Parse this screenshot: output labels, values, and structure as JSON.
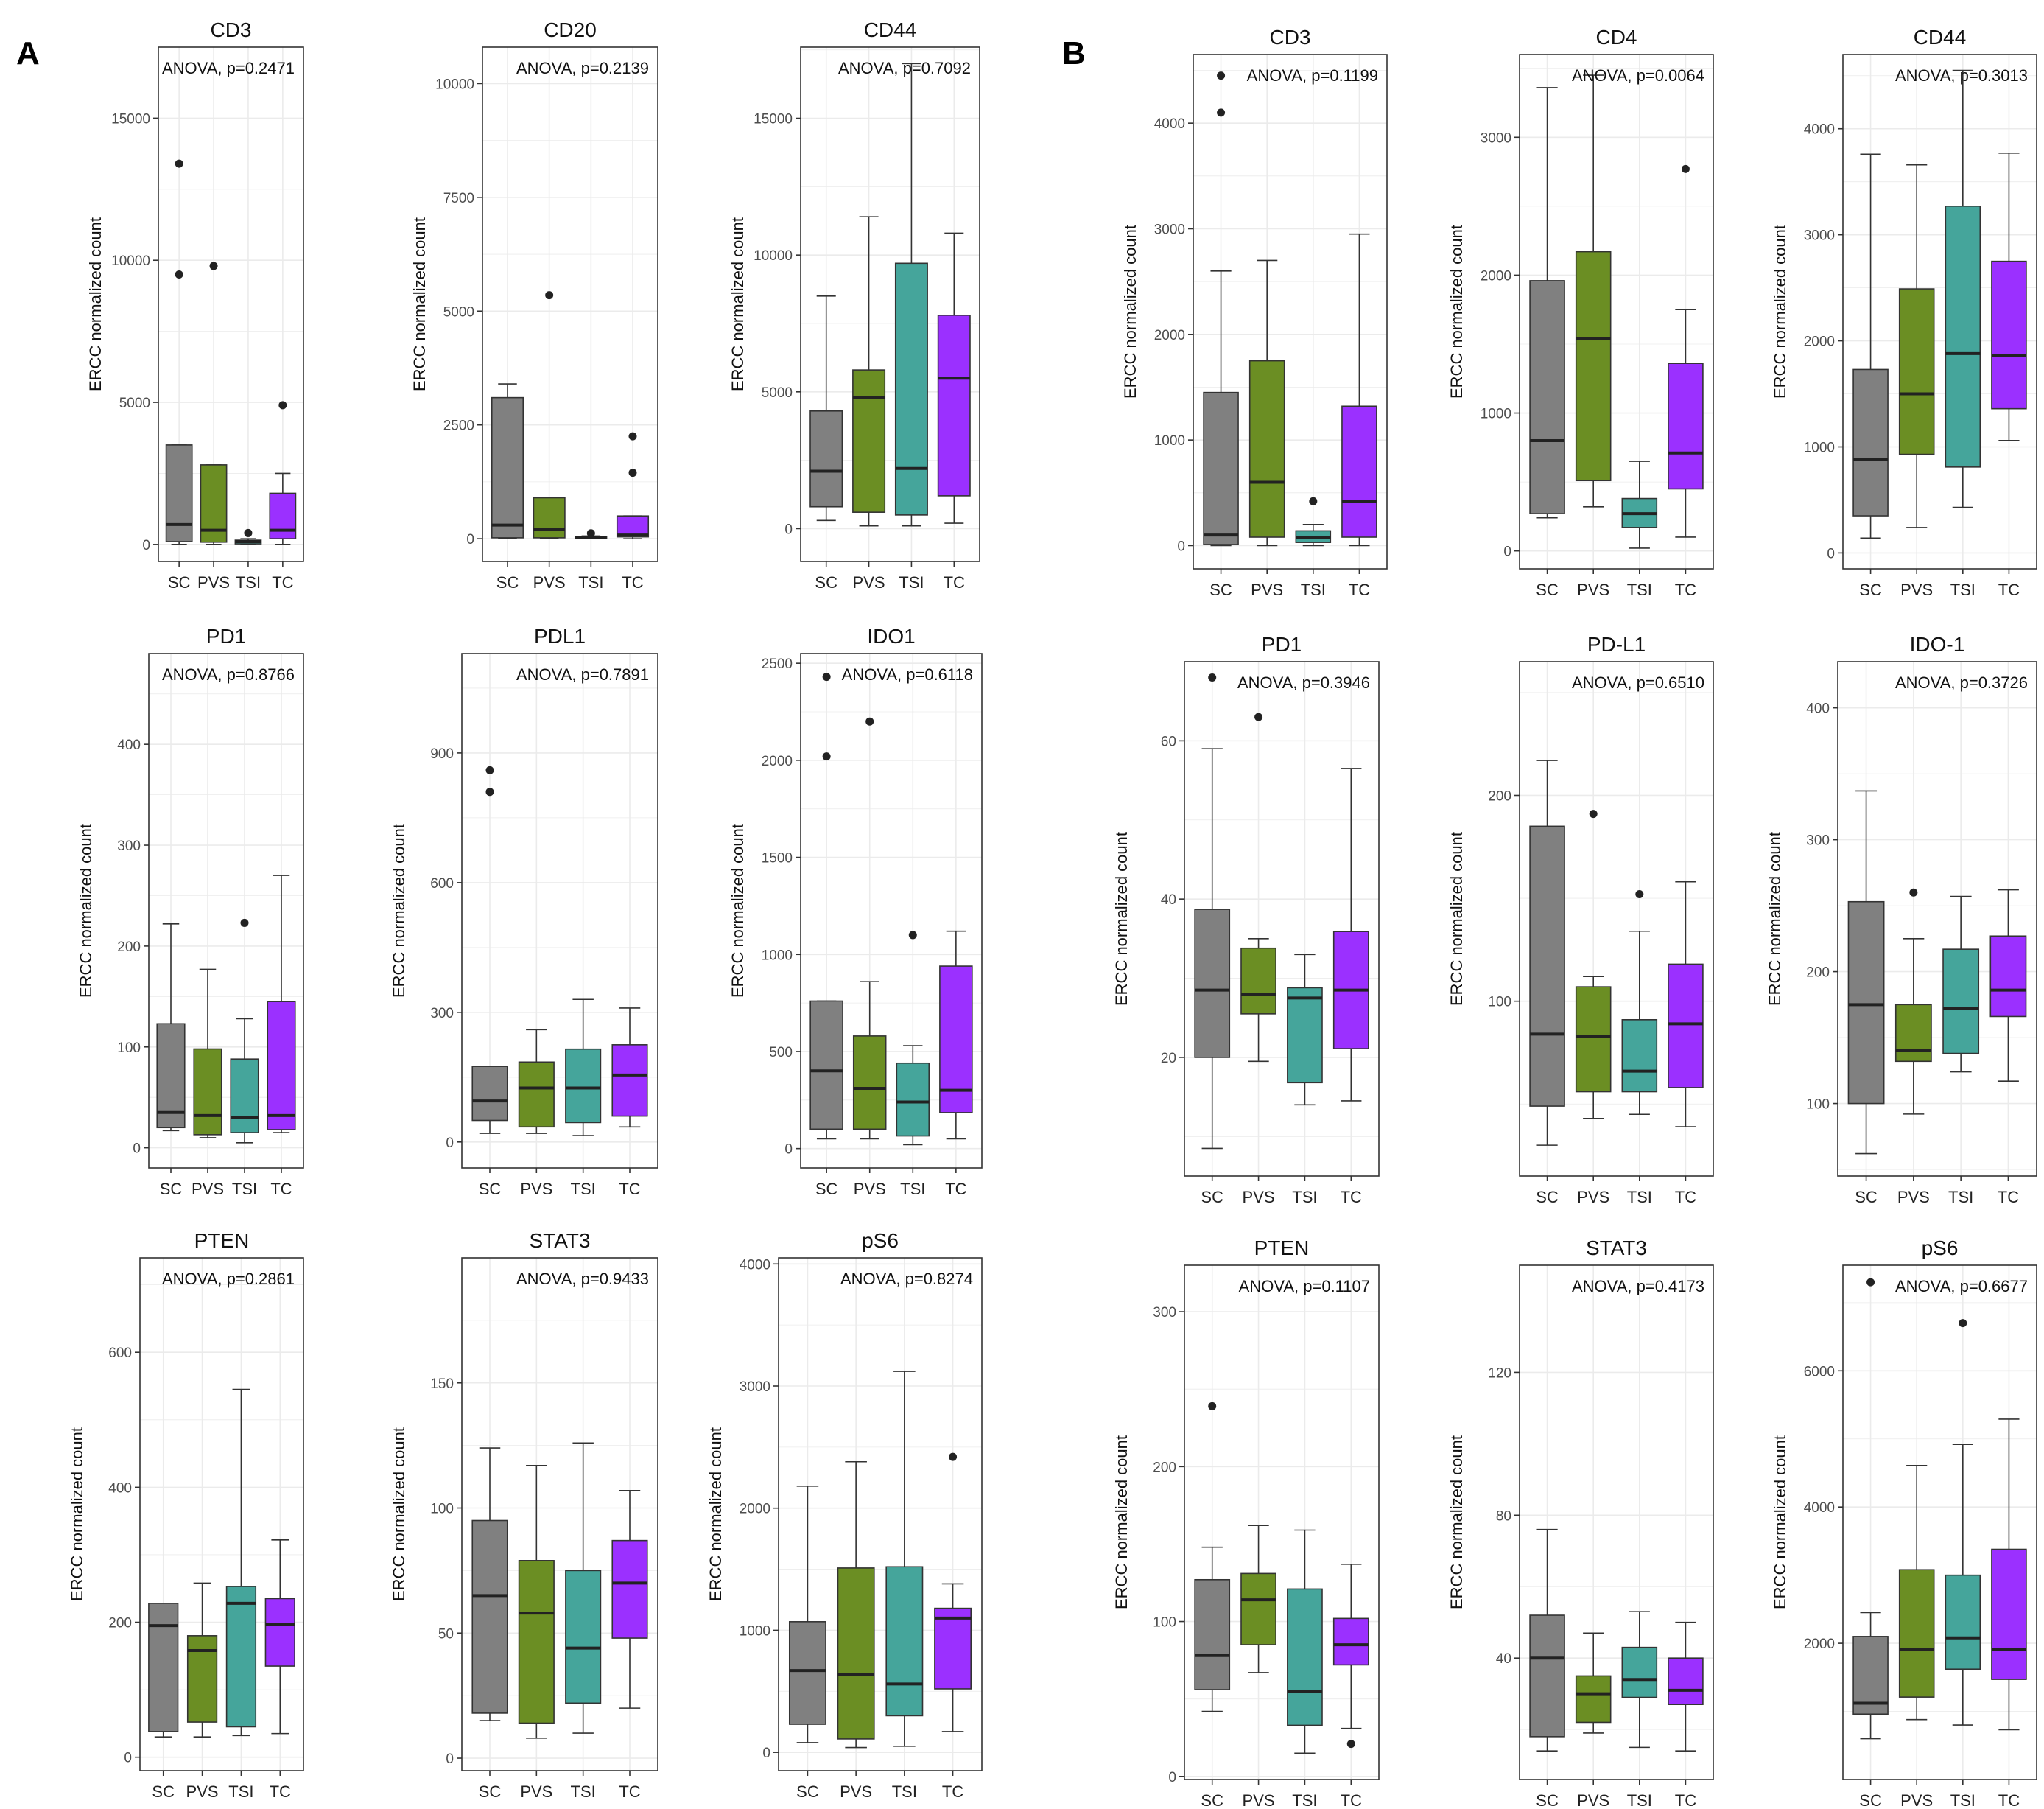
{
  "panel_labels": [
    "A",
    "B"
  ],
  "colors": {
    "SC": "#808080",
    "PVS": "#6b8e23",
    "TSI": "#45a59b",
    "TC": "#9b30ff",
    "grid": "#ebebeb",
    "frame": "#333333"
  },
  "chart_data": [
    {
      "panel": "A",
      "type": "boxplot",
      "title": "CD3",
      "annotation": "ANOVA, p=0.2471",
      "ylabel": "ERCC normalized count",
      "categories": [
        "SC",
        "PVS",
        "TSI",
        "TC"
      ],
      "ylim": [
        -600,
        17500
      ],
      "yticks": [
        0,
        5000,
        10000,
        15000
      ],
      "boxes": [
        {
          "q1": 100,
          "median": 700,
          "q3": 3500,
          "wlo": 0,
          "whi": 3500,
          "outliers": [
            9500,
            13400
          ]
        },
        {
          "q1": 80,
          "median": 500,
          "q3": 2800,
          "wlo": 0,
          "whi": 2800,
          "outliers": [
            9800
          ]
        },
        {
          "q1": 20,
          "median": 100,
          "q3": 150,
          "wlo": 0,
          "whi": 200,
          "outliers": [
            400
          ]
        },
        {
          "q1": 200,
          "median": 500,
          "q3": 1800,
          "wlo": 0,
          "whi": 2500,
          "outliers": [
            4900
          ]
        }
      ]
    },
    {
      "panel": "A",
      "type": "boxplot",
      "title": "CD20",
      "annotation": "ANOVA, p=0.2139",
      "ylabel": "ERCC normalized count",
      "categories": [
        "SC",
        "PVS",
        "TSI",
        "TC"
      ],
      "ylim": [
        -500,
        10800
      ],
      "yticks": [
        0,
        2500,
        5000,
        7500,
        10000
      ],
      "boxes": [
        {
          "q1": 20,
          "median": 300,
          "q3": 3100,
          "wlo": 0,
          "whi": 3400,
          "outliers": []
        },
        {
          "q1": 20,
          "median": 200,
          "q3": 900,
          "wlo": 0,
          "whi": 900,
          "outliers": [
            5350
          ]
        },
        {
          "q1": 5,
          "median": 30,
          "q3": 50,
          "wlo": 0,
          "whi": 60,
          "outliers": [
            120
          ]
        },
        {
          "q1": 40,
          "median": 80,
          "q3": 500,
          "wlo": 0,
          "whi": 500,
          "outliers": [
            1450,
            2250
          ]
        }
      ]
    },
    {
      "panel": "A",
      "type": "boxplot",
      "title": "CD44",
      "annotation": "ANOVA, p=0.7092",
      "ylabel": "ERCC normalized count",
      "categories": [
        "SC",
        "PVS",
        "TSI",
        "TC"
      ],
      "ylim": [
        -1200,
        17600
      ],
      "yticks": [
        0,
        5000,
        10000,
        15000
      ],
      "boxes": [
        {
          "q1": 800,
          "median": 2100,
          "q3": 4300,
          "wlo": 300,
          "whi": 8500,
          "outliers": []
        },
        {
          "q1": 600,
          "median": 4800,
          "q3": 5800,
          "wlo": 100,
          "whi": 11400,
          "outliers": []
        },
        {
          "q1": 500,
          "median": 2200,
          "q3": 9700,
          "wlo": 100,
          "whi": 17000,
          "outliers": []
        },
        {
          "q1": 1200,
          "median": 5500,
          "q3": 7800,
          "wlo": 200,
          "whi": 10800,
          "outliers": []
        }
      ]
    },
    {
      "panel": "B",
      "type": "boxplot",
      "title": "CD3",
      "annotation": "ANOVA, p=0.1199",
      "ylabel": "ERCC normalized count",
      "categories": [
        "SC",
        "PVS",
        "TSI",
        "TC"
      ],
      "ylim": [
        -220,
        4650
      ],
      "yticks": [
        0,
        1000,
        2000,
        3000,
        4000
      ],
      "boxes": [
        {
          "q1": 10,
          "median": 100,
          "q3": 1450,
          "wlo": 0,
          "whi": 2600,
          "outliers": [
            4100,
            4450
          ]
        },
        {
          "q1": 80,
          "median": 600,
          "q3": 1750,
          "wlo": 0,
          "whi": 2700,
          "outliers": []
        },
        {
          "q1": 30,
          "median": 80,
          "q3": 140,
          "wlo": 0,
          "whi": 200,
          "outliers": [
            420
          ]
        },
        {
          "q1": 80,
          "median": 420,
          "q3": 1320,
          "wlo": 0,
          "whi": 2950,
          "outliers": []
        }
      ]
    },
    {
      "panel": "B",
      "type": "boxplot",
      "title": "CD4",
      "annotation": "ANOVA, p=0.0064",
      "ylabel": "ERCC normalized count",
      "categories": [
        "SC",
        "PVS",
        "TSI",
        "TC"
      ],
      "ylim": [
        -130,
        3600
      ],
      "yticks": [
        0,
        1000,
        2000,
        3000
      ],
      "boxes": [
        {
          "q1": 270,
          "median": 800,
          "q3": 1960,
          "wlo": 240,
          "whi": 3360,
          "outliers": []
        },
        {
          "q1": 510,
          "median": 1540,
          "q3": 2170,
          "wlo": 320,
          "whi": 3450,
          "outliers": []
        },
        {
          "q1": 170,
          "median": 270,
          "q3": 380,
          "wlo": 20,
          "whi": 650,
          "outliers": []
        },
        {
          "q1": 450,
          "median": 710,
          "q3": 1360,
          "wlo": 100,
          "whi": 1750,
          "outliers": [
            2770
          ]
        }
      ]
    },
    {
      "panel": "B",
      "type": "boxplot",
      "title": "CD44",
      "annotation": "ANOVA, p=0.3013",
      "ylabel": "ERCC normalized count",
      "categories": [
        "SC",
        "PVS",
        "TSI",
        "TC"
      ],
      "ylim": [
        -150,
        4700
      ],
      "yticks": [
        0,
        1000,
        2000,
        3000,
        4000
      ],
      "boxes": [
        {
          "q1": 350,
          "median": 880,
          "q3": 1730,
          "wlo": 140,
          "whi": 3760,
          "outliers": []
        },
        {
          "q1": 930,
          "median": 1500,
          "q3": 2490,
          "wlo": 240,
          "whi": 3660,
          "outliers": []
        },
        {
          "q1": 810,
          "median": 1880,
          "q3": 3270,
          "wlo": 430,
          "whi": 4550,
          "outliers": []
        },
        {
          "q1": 1360,
          "median": 1860,
          "q3": 2750,
          "wlo": 1060,
          "whi": 3770,
          "outliers": []
        }
      ]
    },
    {
      "panel": "A",
      "type": "boxplot",
      "title": "PD1",
      "annotation": "ANOVA, p=0.8766",
      "ylabel": "ERCC normalized count",
      "categories": [
        "SC",
        "PVS",
        "TSI",
        "TC"
      ],
      "ylim": [
        -20,
        490
      ],
      "yticks": [
        0,
        100,
        200,
        300,
        400
      ],
      "boxes": [
        {
          "q1": 20,
          "median": 35,
          "q3": 123,
          "wlo": 17,
          "whi": 222,
          "outliers": []
        },
        {
          "q1": 13,
          "median": 32,
          "q3": 98,
          "wlo": 10,
          "whi": 177,
          "outliers": []
        },
        {
          "q1": 15,
          "median": 30,
          "q3": 88,
          "wlo": 5,
          "whi": 128,
          "outliers": [
            223
          ]
        },
        {
          "q1": 18,
          "median": 32,
          "q3": 145,
          "wlo": 15,
          "whi": 270,
          "outliers": []
        }
      ]
    },
    {
      "panel": "A",
      "type": "boxplot",
      "title": "PDL1",
      "annotation": "ANOVA, p=0.7891",
      "ylabel": "ERCC normalized count",
      "categories": [
        "SC",
        "PVS",
        "TSI",
        "TC"
      ],
      "ylim": [
        -60,
        1130
      ],
      "yticks": [
        0,
        300,
        600,
        900
      ],
      "boxes": [
        {
          "q1": 50,
          "median": 95,
          "q3": 175,
          "wlo": 20,
          "whi": 175,
          "outliers": [
            810,
            860
          ]
        },
        {
          "q1": 35,
          "median": 125,
          "q3": 185,
          "wlo": 20,
          "whi": 260,
          "outliers": []
        },
        {
          "q1": 45,
          "median": 125,
          "q3": 215,
          "wlo": 15,
          "whi": 330,
          "outliers": []
        },
        {
          "q1": 60,
          "median": 155,
          "q3": 225,
          "wlo": 35,
          "whi": 310,
          "outliers": []
        }
      ]
    },
    {
      "panel": "A",
      "type": "boxplot",
      "title": "IDO1",
      "annotation": "ANOVA, p=0.6118",
      "ylabel": "ERCC normalized count",
      "categories": [
        "SC",
        "PVS",
        "TSI",
        "TC"
      ],
      "ylim": [
        -100,
        2550
      ],
      "yticks": [
        0,
        500,
        1000,
        1500,
        2000,
        2500
      ],
      "boxes": [
        {
          "q1": 100,
          "median": 400,
          "q3": 760,
          "wlo": 50,
          "whi": 760,
          "outliers": [
            2020,
            2430
          ]
        },
        {
          "q1": 100,
          "median": 310,
          "q3": 580,
          "wlo": 50,
          "whi": 860,
          "outliers": [
            2200
          ]
        },
        {
          "q1": 65,
          "median": 240,
          "q3": 440,
          "wlo": 20,
          "whi": 530,
          "outliers": [
            1100
          ]
        },
        {
          "q1": 185,
          "median": 300,
          "q3": 940,
          "wlo": 50,
          "whi": 1120,
          "outliers": []
        }
      ]
    },
    {
      "panel": "B",
      "type": "boxplot",
      "title": "PD1",
      "annotation": "ANOVA, p=0.3946",
      "ylabel": "ERCC normalized count",
      "categories": [
        "SC",
        "PVS",
        "TSI",
        "TC"
      ],
      "ylim": [
        5,
        70
      ],
      "yticks": [
        20,
        40,
        60
      ],
      "boxes": [
        {
          "q1": 20,
          "median": 28.5,
          "q3": 38.7,
          "wlo": 8.5,
          "whi": 59,
          "outliers": [
            68
          ]
        },
        {
          "q1": 25.5,
          "median": 28,
          "q3": 33.8,
          "wlo": 19.5,
          "whi": 35,
          "outliers": [
            63
          ]
        },
        {
          "q1": 16.8,
          "median": 27.5,
          "q3": 28.8,
          "wlo": 14,
          "whi": 33,
          "outliers": []
        },
        {
          "q1": 21.1,
          "median": 28.5,
          "q3": 35.9,
          "wlo": 14.5,
          "whi": 56.5,
          "outliers": []
        }
      ]
    },
    {
      "panel": "B",
      "type": "boxplot",
      "title": "PD-L1",
      "annotation": "ANOVA, p=0.6510",
      "ylabel": "ERCC normalized count",
      "categories": [
        "SC",
        "PVS",
        "TSI",
        "TC"
      ],
      "ylim": [
        15,
        265
      ],
      "yticks": [
        100,
        200
      ],
      "boxes": [
        {
          "q1": 49,
          "median": 84,
          "q3": 185,
          "wlo": 30,
          "whi": 217,
          "outliers": []
        },
        {
          "q1": 56,
          "median": 83,
          "q3": 107,
          "wlo": 43,
          "whi": 112,
          "outliers": [
            191
          ]
        },
        {
          "q1": 56,
          "median": 66,
          "q3": 91,
          "wlo": 45,
          "whi": 134,
          "outliers": [
            152
          ]
        },
        {
          "q1": 58,
          "median": 89,
          "q3": 118,
          "wlo": 39,
          "whi": 158,
          "outliers": []
        }
      ]
    },
    {
      "panel": "B",
      "type": "boxplot",
      "title": "IDO-1",
      "annotation": "ANOVA, p=0.3726",
      "ylabel": "ERCC normalized count",
      "categories": [
        "SC",
        "PVS",
        "TSI",
        "TC"
      ],
      "ylim": [
        45,
        435
      ],
      "yticks": [
        100,
        200,
        300,
        400
      ],
      "boxes": [
        {
          "q1": 100,
          "median": 175,
          "q3": 253,
          "wlo": 62,
          "whi": 337,
          "outliers": []
        },
        {
          "q1": 132,
          "median": 140,
          "q3": 175,
          "wlo": 92,
          "whi": 225,
          "outliers": [
            260
          ]
        },
        {
          "q1": 138,
          "median": 172,
          "q3": 217,
          "wlo": 124,
          "whi": 257,
          "outliers": []
        },
        {
          "q1": 166,
          "median": 186,
          "q3": 227,
          "wlo": 117,
          "whi": 262,
          "outliers": []
        }
      ]
    },
    {
      "panel": "A",
      "type": "boxplot",
      "title": "PTEN",
      "annotation": "ANOVA, p=0.2861",
      "ylabel": "ERCC normalized count",
      "categories": [
        "SC",
        "PVS",
        "TSI",
        "TC"
      ],
      "ylim": [
        -20,
        740
      ],
      "yticks": [
        0,
        200,
        400,
        600
      ],
      "boxes": [
        {
          "q1": 38,
          "median": 195,
          "q3": 228,
          "wlo": 30,
          "whi": 228,
          "outliers": []
        },
        {
          "q1": 52,
          "median": 158,
          "q3": 180,
          "wlo": 30,
          "whi": 258,
          "outliers": []
        },
        {
          "q1": 45,
          "median": 228,
          "q3": 253,
          "wlo": 32,
          "whi": 545,
          "outliers": []
        },
        {
          "q1": 135,
          "median": 197,
          "q3": 235,
          "wlo": 35,
          "whi": 322,
          "outliers": []
        }
      ]
    },
    {
      "panel": "A",
      "type": "boxplot",
      "title": "STAT3",
      "annotation": "ANOVA, p=0.9433",
      "ylabel": "ERCC normalized count",
      "categories": [
        "SC",
        "PVS",
        "TSI",
        "TC"
      ],
      "ylim": [
        -5,
        200
      ],
      "yticks": [
        0,
        50,
        100,
        150
      ],
      "boxes": [
        {
          "q1": 18,
          "median": 65,
          "q3": 95,
          "wlo": 15,
          "whi": 124,
          "outliers": []
        },
        {
          "q1": 14,
          "median": 58,
          "q3": 79,
          "wlo": 8,
          "whi": 117,
          "outliers": []
        },
        {
          "q1": 22,
          "median": 44,
          "q3": 75,
          "wlo": 10,
          "whi": 126,
          "outliers": []
        },
        {
          "q1": 48,
          "median": 70,
          "q3": 87,
          "wlo": 20,
          "whi": 107,
          "outliers": []
        }
      ]
    },
    {
      "panel": "A",
      "type": "boxplot",
      "title": "pS6",
      "annotation": "ANOVA, p=0.8274",
      "ylabel": "ERCC normalized count",
      "categories": [
        "SC",
        "PVS",
        "TSI",
        "TC"
      ],
      "ylim": [
        -150,
        4050
      ],
      "yticks": [
        0,
        1000,
        2000,
        3000,
        4000
      ],
      "boxes": [
        {
          "q1": 230,
          "median": 670,
          "q3": 1070,
          "wlo": 80,
          "whi": 2180,
          "outliers": []
        },
        {
          "q1": 110,
          "median": 640,
          "q3": 1510,
          "wlo": 40,
          "whi": 2380,
          "outliers": []
        },
        {
          "q1": 300,
          "median": 560,
          "q3": 1520,
          "wlo": 50,
          "whi": 3120,
          "outliers": []
        },
        {
          "q1": 520,
          "median": 1100,
          "q3": 1180,
          "wlo": 170,
          "whi": 1380,
          "outliers": [
            2420
          ]
        }
      ]
    },
    {
      "panel": "B",
      "type": "boxplot",
      "title": "PTEN",
      "annotation": "ANOVA, p=0.1107",
      "ylabel": "ERCC normalized count",
      "categories": [
        "SC",
        "PVS",
        "TSI",
        "TC"
      ],
      "ylim": [
        -2,
        330
      ],
      "yticks": [
        0,
        100,
        200,
        300
      ],
      "boxes": [
        {
          "q1": 56,
          "median": 78,
          "q3": 127,
          "wlo": 42,
          "whi": 148,
          "outliers": [
            239
          ]
        },
        {
          "q1": 85,
          "median": 114,
          "q3": 131,
          "wlo": 67,
          "whi": 162,
          "outliers": []
        },
        {
          "q1": 33,
          "median": 55,
          "q3": 121,
          "wlo": 15,
          "whi": 159,
          "outliers": []
        },
        {
          "q1": 72,
          "median": 85,
          "q3": 102,
          "wlo": 31,
          "whi": 137,
          "outliers": [
            21
          ]
        }
      ]
    },
    {
      "panel": "B",
      "type": "boxplot",
      "title": "STAT3",
      "annotation": "ANOVA, p=0.4173",
      "ylabel": "ERCC normalized count",
      "categories": [
        "SC",
        "PVS",
        "TSI",
        "TC"
      ],
      "ylim": [
        6,
        150
      ],
      "yticks": [
        40,
        80,
        120
      ],
      "boxes": [
        {
          "q1": 18,
          "median": 40,
          "q3": 52,
          "wlo": 14,
          "whi": 76,
          "outliers": []
        },
        {
          "q1": 22,
          "median": 30,
          "q3": 35,
          "wlo": 19,
          "whi": 47,
          "outliers": []
        },
        {
          "q1": 29,
          "median": 34,
          "q3": 43,
          "wlo": 15,
          "whi": 53,
          "outliers": []
        },
        {
          "q1": 27,
          "median": 31,
          "q3": 40,
          "wlo": 14,
          "whi": 50,
          "outliers": []
        }
      ]
    },
    {
      "panel": "B",
      "type": "boxplot",
      "title": "pS6",
      "annotation": "ANOVA, p=0.6677",
      "ylabel": "ERCC normalized count",
      "categories": [
        "SC",
        "PVS",
        "TSI",
        "TC"
      ],
      "ylim": [
        0,
        7550
      ],
      "yticks": [
        2000,
        4000,
        6000
      ],
      "boxes": [
        {
          "q1": 960,
          "median": 1120,
          "q3": 2100,
          "wlo": 600,
          "whi": 2450,
          "outliers": [
            7300
          ]
        },
        {
          "q1": 1210,
          "median": 1910,
          "q3": 3080,
          "wlo": 880,
          "whi": 4610,
          "outliers": []
        },
        {
          "q1": 1620,
          "median": 2080,
          "q3": 3000,
          "wlo": 800,
          "whi": 4920,
          "outliers": [
            6700
          ]
        },
        {
          "q1": 1470,
          "median": 1910,
          "q3": 3380,
          "wlo": 730,
          "whi": 5290,
          "outliers": []
        }
      ]
    }
  ]
}
